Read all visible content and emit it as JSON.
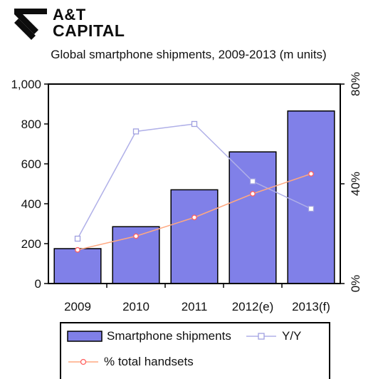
{
  "logo": {
    "line1": "A&T",
    "line2": "CAPITAL"
  },
  "chart_data": {
    "type": "bar",
    "title": "Global smartphone shipments, 2009-2013 (m units)",
    "categories": [
      "2009",
      "2010",
      "2011",
      "2012(e)",
      "2013(f)"
    ],
    "ylim": [
      0,
      1000
    ],
    "y_ticks": [
      "0",
      "200",
      "400",
      "600",
      "800",
      "1,000"
    ],
    "y2lim": [
      0,
      80
    ],
    "y2_ticks": [
      "0%",
      "40%",
      "80%"
    ],
    "series": [
      {
        "name": "Smartphone shipments",
        "type": "bar",
        "axis": "left",
        "values": [
          175,
          285,
          470,
          660,
          865
        ],
        "color": "#8080e8"
      },
      {
        "name": "Y/Y",
        "type": "line",
        "axis": "right",
        "values": [
          18,
          61,
          64,
          41,
          30
        ],
        "color": "#b0b0e8",
        "marker": "square"
      },
      {
        "name": "% total handsets",
        "type": "line",
        "axis": "right",
        "values": [
          13.5,
          19,
          26.5,
          36,
          44
        ],
        "color": "#ffa880",
        "marker": "circle"
      }
    ],
    "grid": false,
    "legend": "bottom"
  },
  "colors": {
    "bar_fill": "#8080e8",
    "bar_stroke": "#000000",
    "yy_line": "#b0b0e8",
    "handsets_line": "#ffa880",
    "handsets_marker": "#ff6060"
  }
}
